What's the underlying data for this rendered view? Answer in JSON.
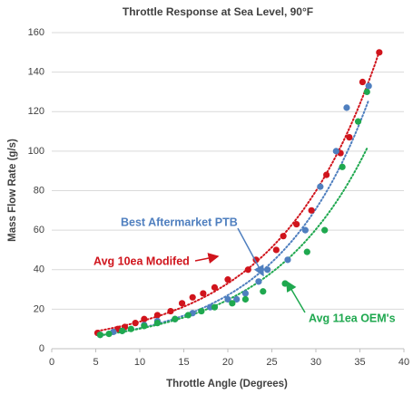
{
  "chart_data": {
    "type": "scatter",
    "title": "Throttle Response at Sea Level, 90°F",
    "xlabel": "Throttle Angle (Degrees)",
    "ylabel": "Mass Flow Rate (g/s)",
    "xlim": [
      0,
      40
    ],
    "xticks": [
      0,
      5,
      10,
      15,
      20,
      25,
      30,
      35,
      40
    ],
    "ylim": [
      0,
      160
    ],
    "yticks": [
      0,
      20,
      40,
      60,
      80,
      100,
      120,
      140,
      160
    ],
    "grid": true,
    "trendline": "exponential",
    "series": [
      {
        "name": "Avg 10ea Modifed",
        "color": "#d0141c",
        "x": [
          5.2,
          7.5,
          8.3,
          9.5,
          10.5,
          12,
          13.5,
          14.8,
          16,
          17.2,
          18.5,
          20,
          22.3,
          23.2,
          25.5,
          26.3,
          27.8,
          29.5,
          31.2,
          32.8,
          33.8,
          35.3,
          37.2
        ],
        "values": [
          8,
          10,
          11,
          13,
          15,
          17,
          19,
          23,
          26,
          28,
          31,
          35,
          40,
          45,
          50,
          57,
          63,
          70,
          88,
          99,
          107,
          135,
          150
        ]
      },
      {
        "name": "Best Aftermarket PTB",
        "color": "#4f7fbf",
        "x": [
          5.5,
          7,
          8,
          10.5,
          12,
          14,
          16,
          18,
          20,
          21,
          22,
          23.5,
          24.5,
          26.8,
          28.8,
          30.5,
          32.3,
          33.5,
          36
        ],
        "values": [
          7,
          8.5,
          9,
          12,
          14,
          15,
          18,
          21,
          25,
          25,
          28,
          34,
          40,
          45,
          60,
          82,
          100,
          122,
          133
        ]
      },
      {
        "name": "Avg 11ea OEM's",
        "color": "#1fa84f",
        "x": [
          5.5,
          6.5,
          8,
          9,
          10.5,
          12,
          14,
          15.5,
          17,
          18.5,
          20.5,
          22,
          24,
          26.5,
          29,
          31,
          33,
          34.8,
          35.8
        ],
        "values": [
          7,
          7.5,
          9,
          10,
          11.5,
          13,
          15,
          17,
          19,
          21,
          23,
          25,
          29,
          33,
          49,
          60,
          92,
          115,
          130
        ]
      }
    ]
  }
}
